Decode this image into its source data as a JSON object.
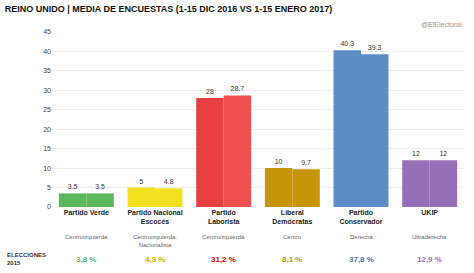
{
  "chart_data": {
    "type": "bar",
    "title": "REINO UNIDO | MEDIA DE ENCUESTAS (1-15 DIC 2016 VS 1-15 ENERO 2017)",
    "categories": [
      "Partido Verde",
      "Partido Nacional Escocés",
      "Partido Laborista",
      "Liberal Demócratas",
      "Partido Conservador",
      "UKIP"
    ],
    "series": [
      {
        "colors": [
          "#5cb85c",
          "#f0e020",
          "#e84040",
          "#c8940a",
          "#5b8dc8",
          "#9570b8"
        ],
        "values": [
          3.5,
          5.0,
          28.0,
          10.0,
          40.3,
          12.0
        ]
      },
      {
        "colors": [
          "#5cb85c",
          "#f0e020",
          "#f05050",
          "#c8940a",
          "#5b8dc8",
          "#9570b8"
        ],
        "values": [
          3.5,
          4.8,
          28.7,
          9.7,
          39.3,
          12.0
        ]
      }
    ],
    "ylim": [
      0,
      45
    ],
    "yticks": [
      0,
      5,
      10,
      15,
      20,
      25,
      30,
      35,
      40,
      45
    ],
    "grid": true,
    "data_labels": true,
    "annotations": [
      {
        "text": "@ElElectoral"
      },
      {
        "text": "ELECCIONES\n2015"
      },
      {
        "text": "Centroizquierda",
        "category": "Partido Verde"
      },
      {
        "text": "Centroizquierda. Nacionalista",
        "category": "Partido Nacional Escocés"
      },
      {
        "text": "Centroizquierda",
        "category": "Partido Laborista"
      },
      {
        "text": "Centro",
        "category": "Liberal Demócratas"
      },
      {
        "text": "Derecha",
        "category": "Partido Conservador"
      },
      {
        "text": "Ultraderecha",
        "category": "UKIP"
      },
      {
        "text": "3,8 %",
        "category": "Partido Verde",
        "color": "#5cb85c"
      },
      {
        "text": "4,9 %",
        "category": "Partido Nacional Escocés",
        "color": "#c8b000"
      },
      {
        "text": "31,2 %",
        "category": "Partido Laborista",
        "color": "#cc0000"
      },
      {
        "text": "8,1 %",
        "category": "Liberal Demócratas",
        "color": "#c8940a"
      },
      {
        "text": "37,8 %",
        "category": "Partido Conservador",
        "color": "#4472c4"
      },
      {
        "text": "12,9 %",
        "category": "UKIP",
        "color": "#9570b8"
      }
    ]
  }
}
